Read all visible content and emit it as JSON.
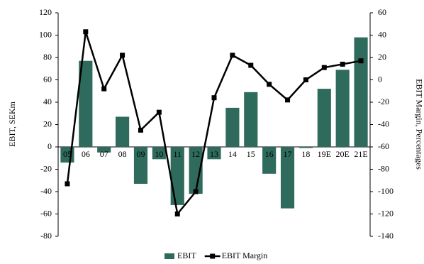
{
  "chart_data": {
    "type": "bar_line",
    "categories": [
      "05",
      "06",
      "07",
      "08",
      "09",
      "10",
      "11",
      "12",
      "13",
      "14",
      "15",
      "16",
      "17",
      "18",
      "19E",
      "20E",
      "21E"
    ],
    "series": [
      {
        "name": "EBIT",
        "type": "bar",
        "color": "#2f6b5c",
        "values": [
          -14,
          77,
          -5,
          27,
          -33,
          -11,
          -52,
          -42,
          -11,
          35,
          49,
          -24,
          -55,
          -1,
          52,
          69,
          98
        ]
      },
      {
        "name": "EBIT Margin",
        "type": "line",
        "axis": "y2",
        "color": "#000000",
        "values": [
          -93,
          43,
          -8,
          22,
          -45,
          -29,
          -120,
          -100,
          -16,
          22,
          13,
          -4,
          -18,
          0,
          11,
          14,
          17
        ]
      }
    ],
    "ylabel": "EBIT, SEKm",
    "y2label": "EBIT Margin, Percentages",
    "ylim": [
      -80,
      120
    ],
    "yticks": [
      -80,
      -60,
      -40,
      -20,
      0,
      20,
      40,
      60,
      80,
      100,
      120
    ],
    "y2lim": [
      -140,
      60
    ],
    "y2ticks": [
      -140,
      -120,
      -100,
      -80,
      -60,
      -40,
      -20,
      0,
      20,
      40,
      60
    ],
    "legend": "bottom"
  }
}
